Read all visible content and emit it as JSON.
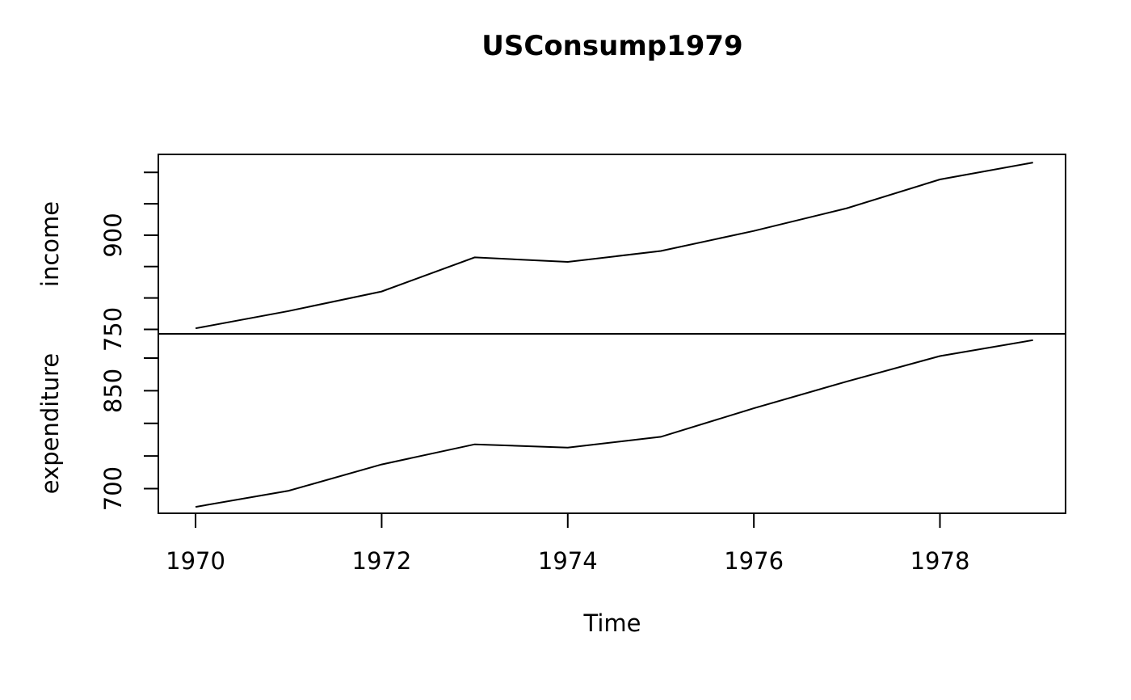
{
  "chart_data": {
    "type": "line",
    "title": "USConsump1979",
    "xlabel": "Time",
    "x": [
      1970,
      1971,
      1972,
      1973,
      1974,
      1975,
      1976,
      1977,
      1978,
      1979
    ],
    "x_ticks": [
      1970,
      1972,
      1974,
      1976,
      1978
    ],
    "xlim": [
      1969.6,
      1979.35
    ],
    "panels": [
      {
        "name": "income",
        "ylabel": "income",
        "values": [
          751.6,
          779.2,
          810.3,
          864.7,
          857.5,
          874.9,
          906.8,
          942.9,
          988.8,
          1015.7
        ],
        "ylim": [
          742.9,
          1028.7
        ],
        "y_ticks": [
          750,
          800,
          850,
          900,
          950,
          1000
        ],
        "y_tick_labels": [
          "750",
          "",
          "",
          "900",
          "",
          ""
        ]
      },
      {
        "name": "expenditure",
        "ylabel": "expenditure",
        "values": [
          672.1,
          696.8,
          737.1,
          767.9,
          762.8,
          779.4,
          823.1,
          864.3,
          903.2,
          927.6
        ],
        "ylim": [
          662.3,
          937.2
        ],
        "y_ticks": [
          700,
          750,
          800,
          850,
          900
        ],
        "y_tick_labels": [
          "700",
          "",
          "",
          "850",
          ""
        ]
      }
    ],
    "grid": false,
    "legend": "none"
  }
}
